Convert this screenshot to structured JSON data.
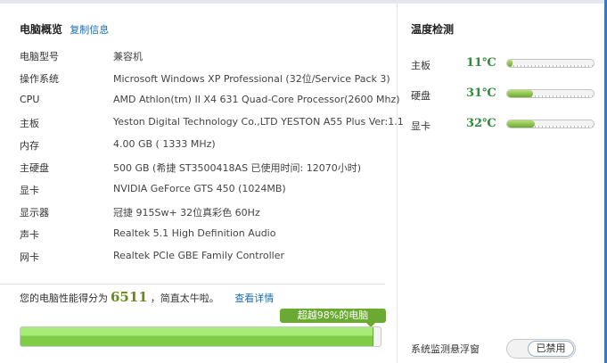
{
  "overview": {
    "title": "电脑概览",
    "copy_link": "复制信息",
    "rows": [
      {
        "label": "电脑型号",
        "value": "兼容机"
      },
      {
        "label": "操作系统",
        "value": "Microsoft Windows XP Professional (32位/Service Pack 3)"
      },
      {
        "label": "CPU",
        "value": "AMD Athlon(tm) II X4 631 Quad-Core Processor(2600 Mhz)"
      },
      {
        "label": "主板",
        "value": "Yeston Digital Technology Co.,LTD YESTON A55 Plus Ver:1.1"
      },
      {
        "label": "内存",
        "value": "4.00 GB (   1333 MHz)"
      },
      {
        "label": "主硬盘",
        "value": "500 GB (希捷 ST3500418AS 已使用时间: 12070小时)"
      },
      {
        "label": "显卡",
        "value": "NVIDIA GeForce GTS 450 (1024MB)"
      },
      {
        "label": "显示器",
        "value": "冠捷 915Sw+ 32位真彩色 60Hz"
      },
      {
        "label": "声卡",
        "value": "Realtek 5.1 High Definition Audio"
      },
      {
        "label": "网卡",
        "value": "Realtek PCIe GBE Family Controller"
      }
    ]
  },
  "score": {
    "prefix": "您的电脑性能得分为",
    "value": "6511",
    "suffix": "，简直太牛啦。",
    "details_link": "查看详情",
    "tooltip": "超越98%的电脑",
    "percent": 98,
    "bar_color": "#7fcc46"
  },
  "temperature": {
    "title": "温度检测",
    "items": [
      {
        "label": "主板",
        "value": "11℃",
        "level": 0.02
      },
      {
        "label": "硬盘",
        "value": "31℃",
        "level": 0.3
      },
      {
        "label": "显卡",
        "value": "32℃",
        "level": 0.32
      }
    ],
    "value_color": "#2e8b3a"
  },
  "monitor": {
    "label": "系统监测悬浮窗",
    "toggle": "已禁用"
  }
}
